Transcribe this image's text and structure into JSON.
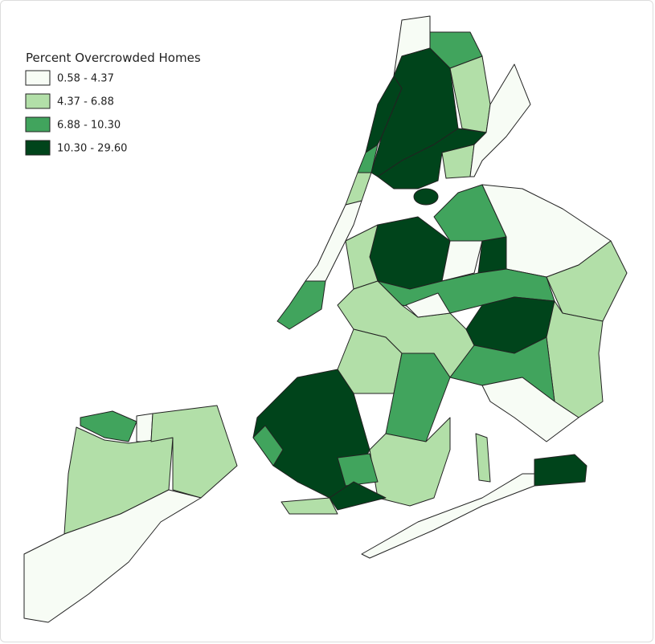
{
  "legend": {
    "title": "Percent Overcrowded Homes",
    "items": [
      {
        "label": "0.58 - 4.37",
        "color": "#f7fcf5"
      },
      {
        "label": "4.37 - 6.88",
        "color": "#b2dfa8"
      },
      {
        "label": "6.88 - 10.30",
        "color": "#41a45d"
      },
      {
        "label": "10.30 - 29.60",
        "color": "#00441b"
      }
    ]
  }
}
